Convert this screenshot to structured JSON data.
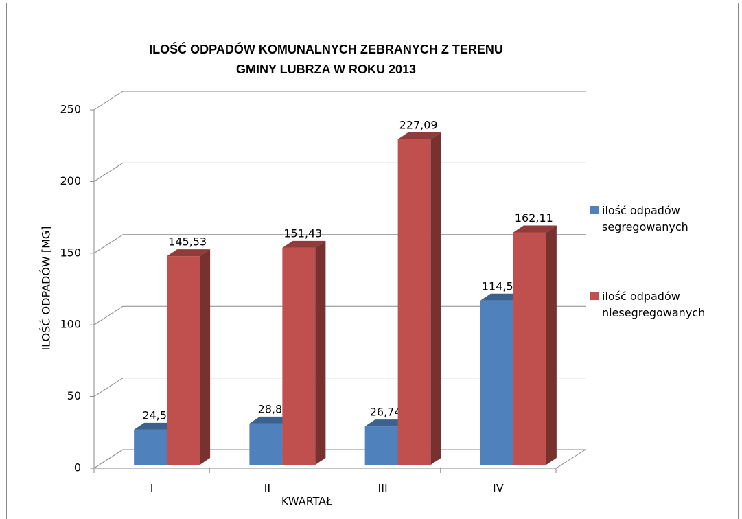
{
  "chart_data": {
    "type": "bar3d",
    "title": "ILOŚĆ ODPADÓW KOMUNALNYCH ZEBRANYCH Z TERENU GMINY LUBRZA W ROKU 2013",
    "x_label": "KWARTAŁ",
    "y_label": "ILOŚĆ ODPADÓW [MG]",
    "categories": [
      "I",
      "II",
      "III",
      "IV"
    ],
    "series": [
      {
        "name": "ilość odpadów segregowanych",
        "color": "#4f81bd",
        "values": [
          24.5,
          28.8,
          26.74,
          114.58
        ],
        "value_labels": [
          "24,5",
          "28,8",
          "26,74",
          "114,58"
        ]
      },
      {
        "name": "ilość odpadów niesegregowanych",
        "color": "#c0504d",
        "values": [
          145.53,
          151.43,
          227.09,
          162.11
        ],
        "value_labels": [
          "145,53",
          "151,43",
          "227,09",
          "162,11"
        ]
      }
    ],
    "ylim": [
      0,
      250
    ],
    "yticks": [
      0,
      50,
      100,
      150,
      200,
      250
    ],
    "grid": true,
    "legend": "right"
  }
}
